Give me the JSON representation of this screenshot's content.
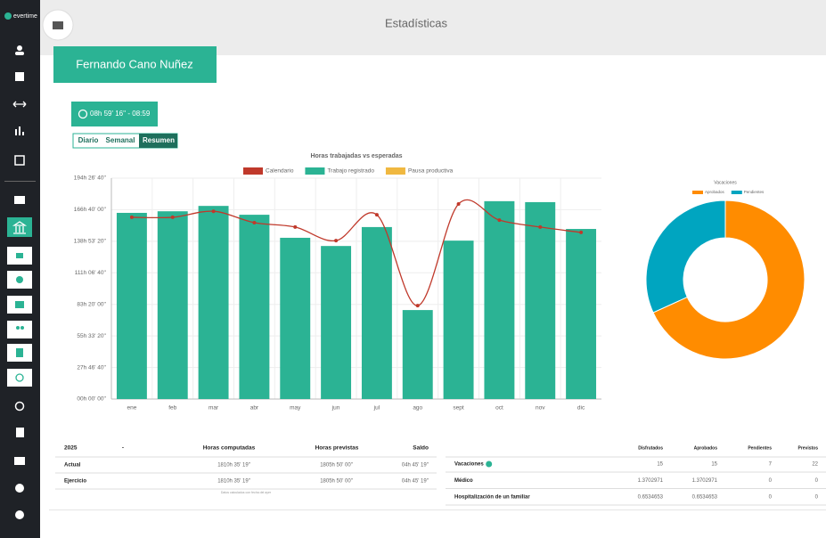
{
  "brand": "evertime",
  "header": {
    "title": "Estadísticas",
    "user": "Fernando Cano Nuñez",
    "clock": "08h 59' 16'' - 08:59"
  },
  "tabs": [
    "Diario",
    "Semanal",
    "Resumen"
  ],
  "chart_data": [
    {
      "type": "bar",
      "title": "Horas trabajadas vs esperadas",
      "categories": [
        "ene",
        "feb",
        "mar",
        "abr",
        "may",
        "jun",
        "jul",
        "ago",
        "sept",
        "oct",
        "nov",
        "dic"
      ],
      "series": [
        {
          "name": "Calendario",
          "type": "line",
          "color": "#c0392b",
          "values": [
            576000,
            576000,
            595000,
            559000,
            545000,
            502000,
            584000,
            296000,
            618000,
            567000,
            545000,
            528000
          ]
        },
        {
          "name": "Trabajo registrado",
          "type": "bar",
          "color": "#2bb394",
          "values": [
            590000,
            595000,
            612000,
            584000,
            511000,
            485000,
            545000,
            282000,
            502000,
            627000,
            624000,
            539000
          ]
        },
        {
          "name": "Pausa productiva",
          "type": "bar",
          "color": "#f0b840",
          "values": [
            0,
            0,
            0,
            0,
            0,
            0,
            0,
            0,
            0,
            0,
            0,
            0
          ]
        }
      ],
      "ylim": [
        0,
        700000
      ],
      "yticks": [
        {
          "value": 0,
          "label": "00h 00' 00''"
        },
        {
          "value": 100000,
          "label": "27h 46' 40''"
        },
        {
          "value": 200000,
          "label": "55h 33' 20''"
        },
        {
          "value": 300000,
          "label": "83h 20' 00''"
        },
        {
          "value": 400000,
          "label": "111h 06' 40''"
        },
        {
          "value": 500000,
          "label": "138h 53' 20''"
        },
        {
          "value": 600000,
          "label": "166h 40' 00''"
        },
        {
          "value": 700000,
          "label": "194h 26' 40''"
        }
      ],
      "grid": true
    },
    {
      "type": "donut",
      "title": "Vacaciones",
      "categories": [
        "Aprobados",
        "Pendientes"
      ],
      "values": [
        15,
        7
      ],
      "colors": [
        "#ff8c00",
        "#00a5c0"
      ]
    }
  ],
  "left_table": {
    "headers": [
      "2025",
      "-",
      "Horas computadas",
      "Horas previstas",
      "Saldo"
    ],
    "rows": [
      [
        "Actual",
        "1810h 35' 19''",
        "1805h 50' 00''",
        "04h 45' 19''"
      ],
      [
        "Ejercicio",
        "1810h 35' 19''",
        "1805h 50' 00''",
        "04h 45' 19''"
      ]
    ],
    "note": "Datos calculados con fecha del ayer"
  },
  "right_table": {
    "headers": [
      "Disfrutados",
      "Aprobados",
      "Pendientes",
      "Previstos"
    ],
    "rows": [
      [
        "Vacaciones",
        15,
        15,
        7,
        22
      ],
      [
        "Médico",
        1.3702971,
        1.3702971,
        0,
        0
      ],
      [
        "Hospitalización de un familiar",
        0.6534653,
        0.6534653,
        0,
        0
      ]
    ]
  }
}
